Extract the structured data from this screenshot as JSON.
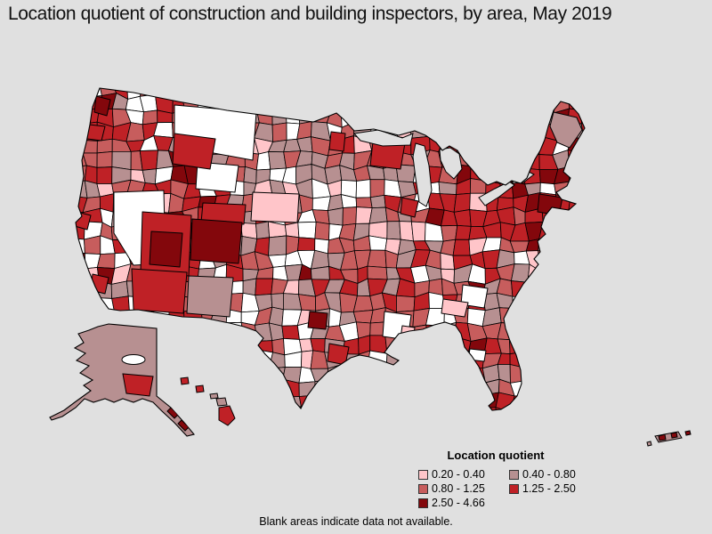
{
  "title": "Location quotient of construction and building inspectors, by area, May 2019",
  "map": {
    "background_color": "#E0E0E0",
    "no_data_color": "#FFFFFF",
    "border_color": "#000000"
  },
  "legend": {
    "title": "Location quotient",
    "items": [
      {
        "label": "0.20 - 0.40",
        "color": "#FFC5C9"
      },
      {
        "label": "0.40 - 0.80",
        "color": "#B79091"
      },
      {
        "label": "0.80 - 1.25",
        "color": "#C75D5D"
      },
      {
        "label": "1.25 - 2.50",
        "color": "#BF2126"
      },
      {
        "label": "2.50 - 4.66",
        "color": "#83070C"
      }
    ]
  },
  "footnote": "Blank areas indicate data not available."
}
